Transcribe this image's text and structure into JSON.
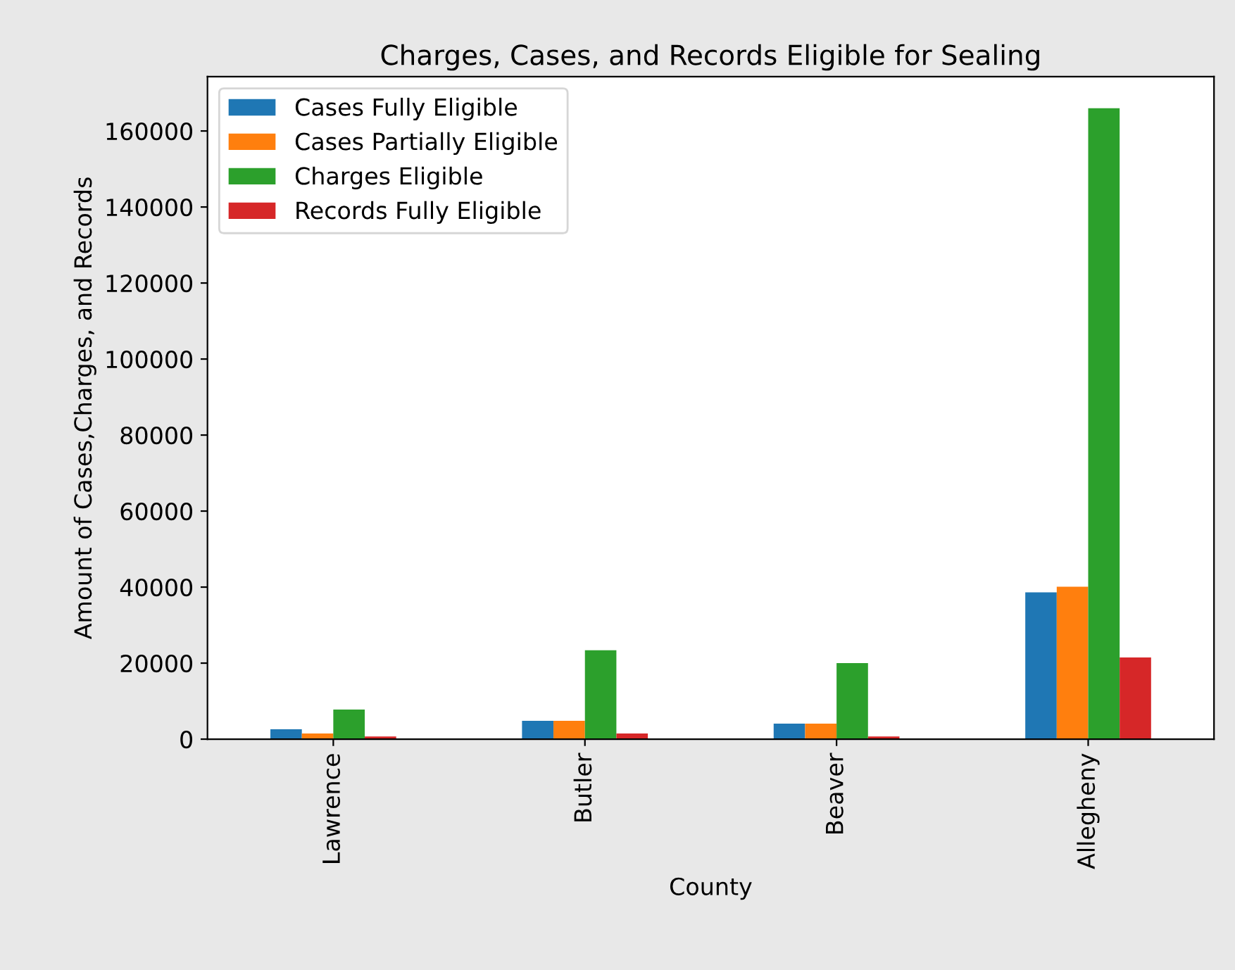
{
  "chart_data": {
    "type": "bar",
    "title": "Charges, Cases, and Records Eligible for Sealing",
    "xlabel": "County",
    "ylabel": "Amount of Cases,Charges, and Records",
    "categories": [
      "Lawrence",
      "Butler",
      "Beaver",
      "Allegheny"
    ],
    "series": [
      {
        "name": "Cases Fully Eligible",
        "color": "#1f77b4",
        "values": [
          2600,
          4800,
          4100,
          38600
        ]
      },
      {
        "name": "Cases Partially Eligible",
        "color": "#ff7f0e",
        "values": [
          1500,
          4800,
          4100,
          40100
        ]
      },
      {
        "name": "Charges Eligible",
        "color": "#2ca02c",
        "values": [
          7800,
          23400,
          20000,
          166000
        ]
      },
      {
        "name": "Records Fully Eligible",
        "color": "#d62728",
        "values": [
          700,
          1500,
          700,
          21500
        ]
      }
    ],
    "ylim": [
      0,
      174300
    ],
    "yticks": [
      0,
      20000,
      40000,
      60000,
      80000,
      100000,
      120000,
      140000,
      160000
    ],
    "legend": "top left",
    "grid": false
  }
}
